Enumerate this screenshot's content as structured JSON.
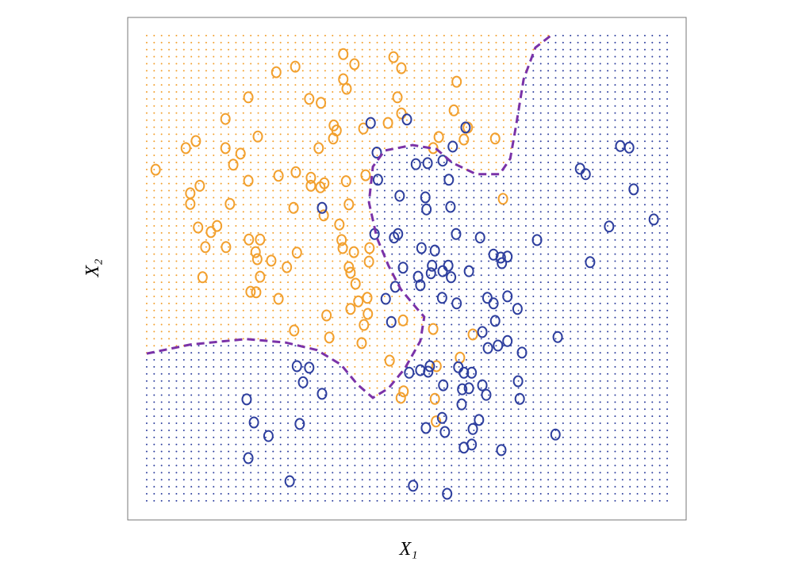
{
  "chart_data": {
    "type": "scatter",
    "x_label": "X₁",
    "y_label": "X₂",
    "xlim": [
      0,
      100
    ],
    "ylim": [
      0,
      100
    ],
    "series": [
      {
        "color": "#f2a02e",
        "x": [
          38.6,
          40.6,
          47.6,
          49.0,
          30.0,
          26.6,
          38.6,
          39.2,
          58.9,
          21.6,
          32.5,
          34.6,
          48.3,
          58.4,
          49.0,
          46.6,
          42.2,
          36.9,
          37.4,
          36.8,
          17.5,
          23.3,
          12.2,
          10.4,
          17.5,
          20.2,
          18.9,
          5.0,
          21.6,
          27.0,
          30.1,
          32.8,
          34.2,
          39.1,
          32.8,
          34.5,
          35.2,
          39.6,
          42.6,
          12.9,
          11.2,
          11.2,
          18.3,
          29.7,
          35.1,
          16.0,
          12.6,
          14.9,
          37.9,
          21.7,
          23.7,
          13.9,
          17.6,
          22.9,
          23.2,
          25.7,
          30.3,
          38.3,
          38.5,
          40.5,
          43.3,
          43.2,
          28.5,
          39.6,
          39.9,
          13.4,
          23.7,
          40.8,
          23.0,
          22.0,
          27.0,
          42.9,
          41.3,
          39.9,
          43.0,
          35.6,
          42.3,
          49.3,
          29.8,
          36.1,
          41.9,
          54.7,
          61.8,
          59.5,
          46.9,
          55.3,
          49.4,
          48.9,
          55.0,
          55.2,
          55.7,
          54.7,
          60.2,
          60.9,
          65.8,
          67.2
        ],
        "y": [
          92.7,
          90.7,
          92.1,
          89.9,
          90.2,
          89.1,
          87.7,
          85.8,
          87.2,
          84.1,
          83.8,
          83.0,
          84.1,
          81.5,
          80.9,
          79.0,
          77.9,
          78.5,
          77.5,
          75.9,
          79.8,
          76.3,
          75.4,
          74.0,
          74.0,
          72.9,
          70.7,
          69.7,
          67.5,
          68.5,
          69.2,
          68.1,
          74.0,
          67.4,
          66.5,
          66.2,
          67.0,
          62.8,
          68.6,
          66.5,
          65.0,
          62.9,
          62.9,
          62.1,
          60.6,
          58.5,
          58.2,
          57.3,
          58.8,
          55.8,
          55.8,
          54.3,
          54.3,
          53.3,
          51.9,
          51.6,
          53.2,
          55.7,
          54.1,
          53.3,
          54.1,
          51.4,
          50.3,
          50.3,
          49.2,
          48.3,
          48.4,
          47.0,
          45.3,
          45.4,
          44.0,
          44.2,
          43.5,
          42.0,
          41.0,
          40.7,
          38.8,
          39.7,
          37.7,
          36.3,
          35.2,
          38.0,
          36.9,
          32.3,
          31.7,
          30.6,
          25.6,
          24.3,
          24.1,
          19.6,
          76.2,
          74.0,
          75.7,
          78.1,
          75.9,
          63.9
        ]
      },
      {
        "color": "#2e3f9e",
        "x": [
          43.5,
          50.0,
          60.5,
          58.2,
          44.6,
          51.6,
          53.7,
          56.4,
          44.8,
          57.5,
          48.7,
          53.3,
          53.5,
          57.8,
          34.8,
          44.2,
          47.7,
          48.4,
          58.8,
          63.1,
          73.3,
          52.6,
          55.0,
          65.5,
          66.8,
          68.0,
          67.0,
          82.8,
          49.3,
          54.5,
          57.4,
          56.4,
          52.0,
          54.3,
          57.9,
          61.1,
          52.4,
          47.9,
          46.2,
          56.3,
          58.9,
          64.4,
          65.5,
          68.0,
          69.8,
          47.2,
          65.8,
          63.5,
          64.5,
          66.3,
          68.0,
          70.6,
          77.0,
          30.3,
          32.5,
          31.4,
          34.8,
          21.3,
          22.6,
          25.2,
          30.8,
          21.6,
          29.0,
          50.4,
          52.4,
          54.1,
          53.8,
          59.2,
          60.2,
          61.6,
          56.5,
          59.9,
          61.1,
          63.5,
          64.2,
          69.9,
          70.2,
          59.8,
          56.3,
          62.9,
          53.4,
          56.8,
          61.8,
          76.6,
          60.2,
          61.6,
          66.9,
          51.1,
          57.2,
          88.2,
          89.8,
          81.0,
          82.0,
          90.6,
          94.2,
          86.2
        ],
        "y": [
          79.0,
          79.7,
          78.1,
          74.3,
          73.1,
          70.8,
          71.0,
          71.5,
          67.7,
          67.7,
          64.5,
          64.2,
          61.8,
          62.3,
          62.1,
          56.9,
          56.2,
          56.9,
          56.9,
          56.2,
          55.7,
          54.1,
          53.6,
          52.8,
          52.2,
          52.4,
          51.1,
          51.3,
          50.2,
          50.6,
          50.6,
          49.5,
          48.4,
          49.1,
          48.3,
          49.5,
          46.7,
          46.4,
          44.0,
          44.2,
          43.1,
          44.2,
          43.1,
          44.5,
          42.0,
          39.4,
          39.6,
          37.4,
          34.2,
          34.7,
          35.6,
          33.3,
          36.4,
          30.6,
          30.3,
          27.4,
          25.1,
          24.0,
          19.4,
          16.7,
          19.1,
          12.3,
          7.7,
          29.3,
          29.8,
          30.6,
          29.5,
          30.4,
          29.3,
          29.3,
          26.8,
          26.0,
          26.2,
          26.8,
          24.9,
          27.6,
          24.1,
          23.0,
          20.3,
          19.9,
          18.3,
          17.5,
          18.1,
          17.0,
          14.4,
          15.0,
          13.9,
          6.8,
          5.2,
          74.4,
          74.1,
          69.9,
          68.8,
          65.8,
          59.8,
          58.4
        ]
      }
    ],
    "boundary": {
      "color": "#7a32a8",
      "x": [
        3.4,
        11.2,
        21.2,
        28.3,
        33.9,
        38.2,
        41.1,
        43.9,
        46.7,
        49.6,
        52.4,
        53.1,
        51.3,
        48.9,
        46.7,
        44.6,
        43.2,
        43.9,
        46.0,
        51.0,
        55.3,
        58.1,
        62.4,
        66.6,
        68.5,
        69.5,
        70.9,
        73.0,
        75.9
      ],
      "y": [
        33.1,
        34.9,
        36.0,
        35.3,
        33.8,
        30.9,
        27.0,
        24.3,
        26.2,
        30.1,
        35.6,
        40.4,
        42.7,
        45.9,
        50.6,
        56.2,
        63.2,
        70.3,
        73.5,
        74.6,
        73.8,
        71.1,
        68.8,
        68.8,
        71.9,
        78.2,
        87.7,
        94.0,
        96.5
      ]
    }
  }
}
